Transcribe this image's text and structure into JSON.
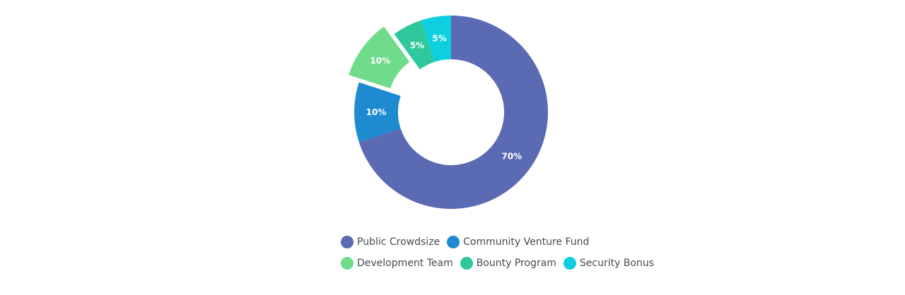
{
  "chart_data": {
    "type": "pie",
    "variant": "donut",
    "title": "",
    "slices": [
      {
        "name": "Public Crowdsize",
        "value": 70,
        "label": "70%",
        "color": "#5a6bb3",
        "exploded": false
      },
      {
        "name": "Community Venture Fund",
        "value": 10,
        "label": "10%",
        "color": "#1e8bd1",
        "exploded": false
      },
      {
        "name": "Development Team",
        "value": 10,
        "label": "10%",
        "color": "#6fdc8c",
        "exploded": true
      },
      {
        "name": "Bounty Program",
        "value": 5,
        "label": "5%",
        "color": "#2ec89c",
        "exploded": false
      },
      {
        "name": "Security Bonus",
        "value": 5,
        "label": "5%",
        "color": "#0ecfe0",
        "exploded": false
      }
    ],
    "start_angle": "top",
    "direction": "clockwise",
    "legend_position": "bottom"
  }
}
